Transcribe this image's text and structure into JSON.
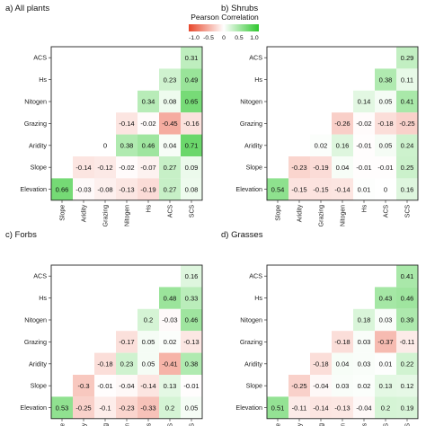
{
  "legend": {
    "title": "Pearson Correlation",
    "ticks": [
      "-1.0",
      "-0.5",
      "0",
      "0.5",
      "1.0"
    ],
    "tick_values": [
      -1,
      -0.5,
      0,
      0.5,
      1
    ],
    "colors": {
      "negative": "#e8472b",
      "zero": "#ffffff",
      "positive": "#2ec72e"
    }
  },
  "chart_data": [
    {
      "type": "heatmap",
      "title": "a) All plants",
      "variables": [
        "Slope",
        "Aridity",
        "Grazing",
        "Nitogen",
        "Hs",
        "ACS",
        "SCS"
      ],
      "row_labels": [
        "ACS",
        "Hs",
        "Nitogen",
        "Grazing",
        "Aridity",
        "Slope",
        "Elevation"
      ],
      "col_labels": [
        "Slope",
        "Aridity",
        "Grazing",
        "Nitogen",
        "Hs",
        "ACS",
        "SCS"
      ],
      "rows": [
        [
          null,
          null,
          null,
          null,
          null,
          null,
          0.31
        ],
        [
          null,
          null,
          null,
          null,
          null,
          0.23,
          0.49
        ],
        [
          null,
          null,
          null,
          null,
          0.34,
          0.08,
          0.65
        ],
        [
          null,
          null,
          null,
          -0.14,
          -0.02,
          -0.45,
          -0.16
        ],
        [
          null,
          null,
          0,
          0.38,
          0.46,
          0.04,
          0.71
        ],
        [
          null,
          -0.14,
          -0.12,
          -0.02,
          -0.07,
          0.27,
          0.09
        ],
        [
          0.66,
          -0.03,
          -0.08,
          -0.13,
          -0.19,
          0.27,
          0.08
        ]
      ]
    },
    {
      "type": "heatmap",
      "title": "b) Shrubs",
      "variables": [
        "Slope",
        "Aridity",
        "Grazing",
        "Nitogen",
        "Hs",
        "ACS",
        "SCS"
      ],
      "row_labels": [
        "ACS",
        "Hs",
        "Nitogen",
        "Grazing",
        "Aridity",
        "Slope",
        "Elevation"
      ],
      "col_labels": [
        "Slope",
        "Aridity",
        "Grazing",
        "Nitogen",
        "Hs",
        "ACS",
        "SCS"
      ],
      "rows": [
        [
          null,
          null,
          null,
          null,
          null,
          null,
          0.29
        ],
        [
          null,
          null,
          null,
          null,
          null,
          0.38,
          0.11
        ],
        [
          null,
          null,
          null,
          null,
          0.14,
          0.05,
          0.41
        ],
        [
          null,
          null,
          null,
          -0.26,
          -0.02,
          -0.18,
          -0.25
        ],
        [
          null,
          null,
          0.02,
          0.16,
          -0.01,
          0.05,
          0.24
        ],
        [
          null,
          -0.23,
          -0.19,
          0.04,
          -0.01,
          -0.01,
          0.25
        ],
        [
          0.54,
          -0.15,
          -0.15,
          -0.14,
          0.01,
          0,
          0.16
        ]
      ]
    },
    {
      "type": "heatmap",
      "title": "c) Forbs",
      "variables": [
        "Slope",
        "Aridity",
        "Grazing",
        "Nitogen",
        "Hs",
        "ACS",
        "SCS"
      ],
      "row_labels": [
        "ACS",
        "Hs",
        "Nitogen",
        "Grazing",
        "Aridity",
        "Slope",
        "Elevation"
      ],
      "col_labels": [
        "Slope",
        "Aridity",
        "Grazing",
        "Nitogen",
        "Hs",
        "ACS",
        "SCS"
      ],
      "rows": [
        [
          null,
          null,
          null,
          null,
          null,
          null,
          0.16
        ],
        [
          null,
          null,
          null,
          null,
          null,
          0.48,
          0.33
        ],
        [
          null,
          null,
          null,
          null,
          0.2,
          -0.03,
          0.46
        ],
        [
          null,
          null,
          null,
          -0.17,
          0.05,
          0.02,
          -0.13
        ],
        [
          null,
          null,
          -0.18,
          0.23,
          0.05,
          -0.41,
          0.38
        ],
        [
          null,
          -0.3,
          -0.01,
          -0.04,
          -0.14,
          0.13,
          -0.01
        ],
        [
          0.53,
          -0.25,
          -0.1,
          -0.23,
          -0.33,
          0.2,
          0.05
        ]
      ]
    },
    {
      "type": "heatmap",
      "title": "d) Grasses",
      "variables": [
        "Slope",
        "Aridity",
        "Grazing",
        "Nitogen",
        "Hs",
        "ACS",
        "SCS"
      ],
      "row_labels": [
        "ACS",
        "Hs",
        "Nitogen",
        "Grazing",
        "Aridity",
        "Slope",
        "Elevation"
      ],
      "col_labels": [
        "Slope",
        "Aridity",
        "Grazing",
        "Nitogen",
        "Hs",
        "ACS",
        "SCS"
      ],
      "rows": [
        [
          null,
          null,
          null,
          null,
          null,
          null,
          0.41
        ],
        [
          null,
          null,
          null,
          null,
          null,
          0.43,
          0.46
        ],
        [
          null,
          null,
          null,
          null,
          0.18,
          0.03,
          0.39
        ],
        [
          null,
          null,
          null,
          -0.18,
          0.03,
          -0.37,
          -0.11
        ],
        [
          null,
          null,
          -0.18,
          0.04,
          0.03,
          0.01,
          0.22
        ],
        [
          null,
          -0.25,
          -0.04,
          0.03,
          0.02,
          0.13,
          0.12
        ],
        [
          0.51,
          -0.11,
          -0.14,
          -0.13,
          -0.04,
          0.2,
          0.19
        ]
      ]
    }
  ]
}
